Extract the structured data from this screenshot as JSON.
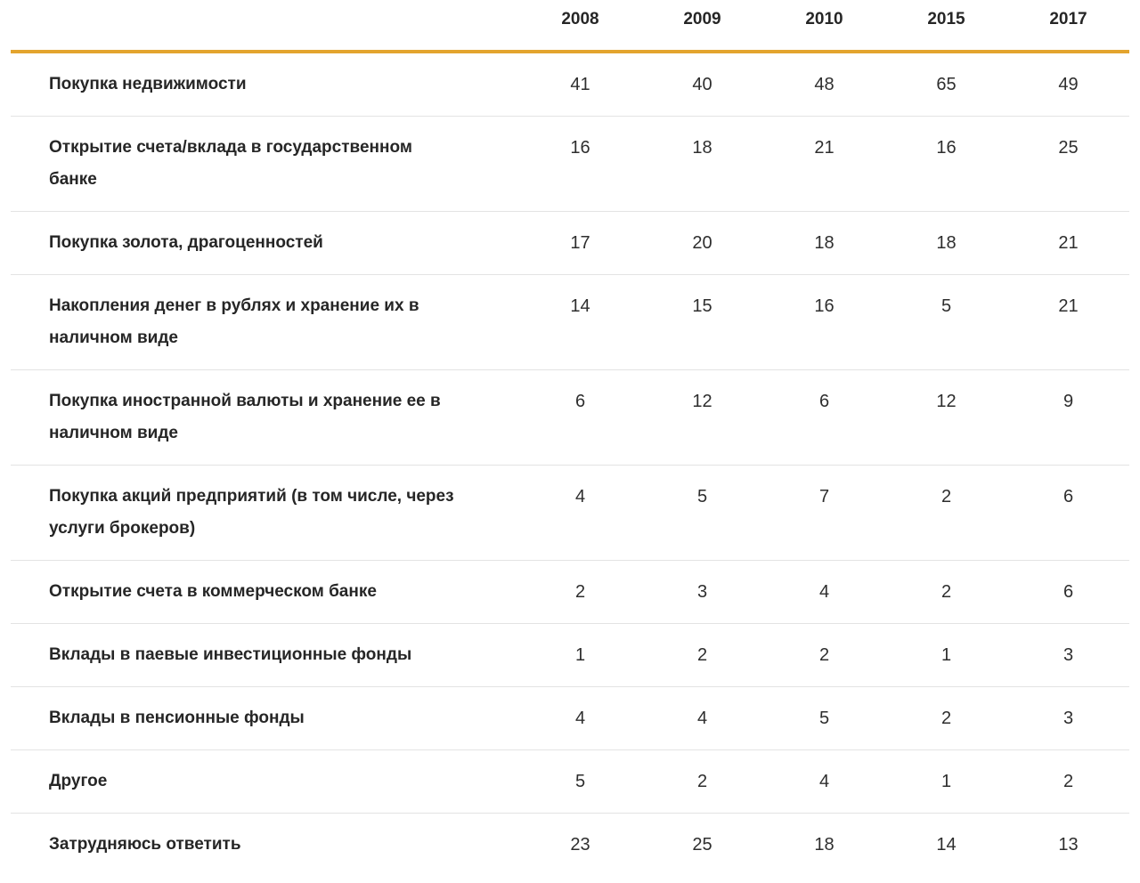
{
  "chart_data": {
    "type": "table",
    "title": "",
    "legend_position": "none",
    "grid": "horizontal-dividers",
    "columns": [
      "2008",
      "2009",
      "2010",
      "2015",
      "2017"
    ],
    "rows": [
      {
        "label": "Покупка недвижимости",
        "values": [
          41,
          40,
          48,
          65,
          49
        ]
      },
      {
        "label": "Открытие счета/вклада в государственном банке",
        "values": [
          16,
          18,
          21,
          16,
          25
        ]
      },
      {
        "label": "Покупка золота, драгоценностей",
        "values": [
          17,
          20,
          18,
          18,
          21
        ]
      },
      {
        "label": "Накопления денег в рублях и хранение их в наличном виде",
        "values": [
          14,
          15,
          16,
          5,
          21
        ]
      },
      {
        "label": "Покупка иностранной валюты и хранение ее в наличном виде",
        "values": [
          6,
          12,
          6,
          12,
          9
        ]
      },
      {
        "label": "Покупка акций предприятий (в том числе, через услуги брокеров)",
        "values": [
          4,
          5,
          7,
          2,
          6
        ]
      },
      {
        "label": "Открытие счета в коммерческом банке",
        "values": [
          2,
          3,
          4,
          2,
          6
        ]
      },
      {
        "label": "Вклады в паевые инвестиционные фонды",
        "values": [
          1,
          2,
          2,
          1,
          3
        ]
      },
      {
        "label": "Вклады в пенсионные фонды",
        "values": [
          4,
          4,
          5,
          2,
          3
        ]
      },
      {
        "label": "Другое",
        "values": [
          5,
          2,
          4,
          1,
          2
        ]
      },
      {
        "label": "Затрудняюсь ответить",
        "values": [
          23,
          25,
          18,
          14,
          13
        ]
      }
    ],
    "colors": {
      "accent": "#E3A42E",
      "divider": "#E3E3E3",
      "text": "#262626"
    }
  }
}
